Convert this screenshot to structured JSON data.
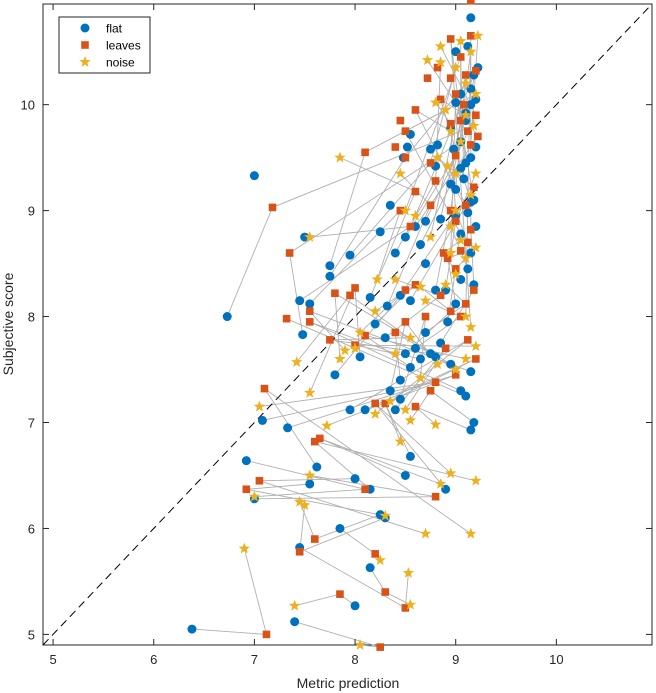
{
  "chart_data": {
    "type": "scatter",
    "xlabel": "Metric prediction",
    "ylabel": "Subjective score",
    "xlim": [
      4.9,
      10.95
    ],
    "ylim": [
      4.9,
      10.95
    ],
    "xticks": [
      "5",
      "6",
      "7",
      "8",
      "9",
      "10"
    ],
    "yticks": [
      "5",
      "6",
      "7",
      "8",
      "9",
      "10"
    ],
    "grid": false,
    "legend_position": "top-left",
    "reference_line": "identity (y = x), dashed",
    "connector_color": "#b0b0b0",
    "series": [
      {
        "name": "flat",
        "marker": "circle",
        "color": "#0072BD",
        "points": [
          [
            6.38,
            5.05
          ],
          [
            7.4,
            5.12
          ],
          [
            8.0,
            5.27
          ],
          [
            8.15,
            5.63
          ],
          [
            7.45,
            5.82
          ],
          [
            7.85,
            6.0
          ],
          [
            8.3,
            6.1
          ],
          [
            8.25,
            6.13
          ],
          [
            7.0,
            6.28
          ],
          [
            6.92,
            6.64
          ],
          [
            7.55,
            6.42
          ],
          [
            8.0,
            6.47
          ],
          [
            7.62,
            6.58
          ],
          [
            8.15,
            6.37
          ],
          [
            8.5,
            6.5
          ],
          [
            8.9,
            6.37
          ],
          [
            8.55,
            6.68
          ],
          [
            9.15,
            6.93
          ],
          [
            9.18,
            7.0
          ],
          [
            7.08,
            7.02
          ],
          [
            7.33,
            6.95
          ],
          [
            7.95,
            7.12
          ],
          [
            8.1,
            7.12
          ],
          [
            8.4,
            7.12
          ],
          [
            8.45,
            7.22
          ],
          [
            8.35,
            7.3
          ],
          [
            8.45,
            7.4
          ],
          [
            8.55,
            7.52
          ],
          [
            8.65,
            7.6
          ],
          [
            8.75,
            7.65
          ],
          [
            9.05,
            7.3
          ],
          [
            9.1,
            7.25
          ],
          [
            9.15,
            7.48
          ],
          [
            8.95,
            7.55
          ],
          [
            8.8,
            7.62
          ],
          [
            8.05,
            7.62
          ],
          [
            7.8,
            7.45
          ],
          [
            8.2,
            7.93
          ],
          [
            8.3,
            7.8
          ],
          [
            8.5,
            7.65
          ],
          [
            8.6,
            7.7
          ],
          [
            8.7,
            7.85
          ],
          [
            8.85,
            7.75
          ],
          [
            8.92,
            7.95
          ],
          [
            9.0,
            8.12
          ],
          [
            9.05,
            8.35
          ],
          [
            9.12,
            8.45
          ],
          [
            9.15,
            8.6
          ],
          [
            9.18,
            8.3
          ],
          [
            8.9,
            8.25
          ],
          [
            8.8,
            8.25
          ],
          [
            8.55,
            8.15
          ],
          [
            8.45,
            8.2
          ],
          [
            8.32,
            8.1
          ],
          [
            8.15,
            8.18
          ],
          [
            7.45,
            8.15
          ],
          [
            7.55,
            8.12
          ],
          [
            7.48,
            7.83
          ],
          [
            6.73,
            8.0
          ],
          [
            7.75,
            8.48
          ],
          [
            7.75,
            8.38
          ],
          [
            7.95,
            8.58
          ],
          [
            8.4,
            8.6
          ],
          [
            8.5,
            8.75
          ],
          [
            8.65,
            8.68
          ],
          [
            8.6,
            8.85
          ],
          [
            8.7,
            8.9
          ],
          [
            8.85,
            8.92
          ],
          [
            9.0,
            8.95
          ],
          [
            9.05,
            8.78
          ],
          [
            9.12,
            8.98
          ],
          [
            9.15,
            9.08
          ],
          [
            9.18,
            9.1
          ],
          [
            9.0,
            9.2
          ],
          [
            8.95,
            9.25
          ],
          [
            9.08,
            9.3
          ],
          [
            9.1,
            9.45
          ],
          [
            9.15,
            9.5
          ],
          [
            9.2,
            9.6
          ],
          [
            9.05,
            9.65
          ],
          [
            8.98,
            9.58
          ],
          [
            8.82,
            9.62
          ],
          [
            8.75,
            9.58
          ],
          [
            8.8,
            9.42
          ],
          [
            8.52,
            9.6
          ],
          [
            8.48,
            9.5
          ],
          [
            8.55,
            9.72
          ],
          [
            8.95,
            9.78
          ],
          [
            9.1,
            9.92
          ],
          [
            9.15,
            10.0
          ],
          [
            9.2,
            10.05
          ],
          [
            9.0,
            10.02
          ],
          [
            9.05,
            10.1
          ],
          [
            9.15,
            10.15
          ],
          [
            9.18,
            10.28
          ],
          [
            9.22,
            10.35
          ],
          [
            9.0,
            10.5
          ],
          [
            9.12,
            10.55
          ],
          [
            9.15,
            10.82
          ],
          [
            8.35,
            9.05
          ],
          [
            8.25,
            8.8
          ],
          [
            7.5,
            8.75
          ],
          [
            7.0,
            9.33
          ],
          [
            9.1,
            9.85
          ],
          [
            9.05,
            9.4
          ],
          [
            8.7,
            8.5
          ],
          [
            9.2,
            8.85
          ]
        ]
      },
      {
        "name": "leaves",
        "marker": "square",
        "color": "#D95319",
        "points": [
          [
            7.12,
            5.0
          ],
          [
            8.25,
            4.88
          ],
          [
            7.85,
            5.38
          ],
          [
            8.3,
            5.4
          ],
          [
            8.5,
            5.25
          ],
          [
            8.2,
            5.76
          ],
          [
            7.45,
            5.78
          ],
          [
            7.6,
            5.9
          ],
          [
            8.8,
            6.3
          ],
          [
            8.1,
            6.37
          ],
          [
            6.92,
            6.37
          ],
          [
            7.05,
            6.45
          ],
          [
            7.1,
            7.32
          ],
          [
            7.6,
            6.82
          ],
          [
            7.65,
            6.85
          ],
          [
            8.2,
            7.18
          ],
          [
            8.3,
            7.18
          ],
          [
            8.6,
            7.15
          ],
          [
            8.75,
            7.3
          ],
          [
            8.8,
            7.38
          ],
          [
            9.0,
            7.45
          ],
          [
            9.12,
            7.78
          ],
          [
            9.2,
            7.6
          ],
          [
            8.9,
            7.7
          ],
          [
            8.7,
            8.0
          ],
          [
            8.5,
            7.95
          ],
          [
            8.4,
            7.85
          ],
          [
            8.1,
            7.82
          ],
          [
            8.0,
            7.73
          ],
          [
            7.75,
            7.78
          ],
          [
            7.55,
            7.95
          ],
          [
            7.32,
            7.98
          ],
          [
            7.55,
            8.05
          ],
          [
            7.8,
            8.22
          ],
          [
            7.95,
            8.2
          ],
          [
            8.0,
            8.27
          ],
          [
            8.5,
            8.25
          ],
          [
            8.6,
            8.3
          ],
          [
            8.85,
            8.2
          ],
          [
            8.95,
            8.05
          ],
          [
            9.05,
            8.0
          ],
          [
            9.1,
            8.12
          ],
          [
            9.18,
            8.25
          ],
          [
            9.0,
            8.45
          ],
          [
            8.92,
            8.55
          ],
          [
            8.88,
            8.6
          ],
          [
            9.05,
            8.62
          ],
          [
            9.12,
            8.7
          ],
          [
            9.15,
            8.82
          ],
          [
            9.0,
            8.9
          ],
          [
            8.95,
            9.0
          ],
          [
            9.1,
            9.05
          ],
          [
            9.18,
            9.22
          ],
          [
            8.75,
            9.05
          ],
          [
            8.6,
            9.18
          ],
          [
            8.55,
            8.85
          ],
          [
            8.45,
            9.0
          ],
          [
            7.35,
            8.6
          ],
          [
            7.18,
            9.03
          ],
          [
            8.1,
            9.55
          ],
          [
            8.5,
            9.5
          ],
          [
            8.75,
            9.45
          ],
          [
            8.8,
            9.28
          ],
          [
            9.0,
            9.52
          ],
          [
            9.15,
            9.62
          ],
          [
            9.22,
            9.7
          ],
          [
            9.2,
            9.9
          ],
          [
            9.05,
            9.85
          ],
          [
            8.95,
            9.82
          ],
          [
            8.5,
            9.75
          ],
          [
            8.6,
            9.95
          ],
          [
            8.85,
            10.05
          ],
          [
            9.0,
            10.1
          ],
          [
            9.1,
            10.28
          ],
          [
            9.2,
            10.32
          ],
          [
            9.05,
            10.45
          ],
          [
            8.95,
            10.62
          ],
          [
            9.15,
            10.65
          ],
          [
            9.15,
            10.98
          ],
          [
            8.72,
            10.25
          ],
          [
            8.82,
            10.35
          ],
          [
            8.95,
            10.25
          ],
          [
            9.08,
            10.0
          ],
          [
            9.12,
            9.75
          ],
          [
            8.4,
            9.6
          ],
          [
            8.45,
            9.85
          ]
        ]
      },
      {
        "name": "noise",
        "marker": "star",
        "color": "#EDB120",
        "points": [
          [
            6.9,
            5.81
          ],
          [
            8.05,
            4.9
          ],
          [
            7.4,
            5.27
          ],
          [
            8.55,
            5.28
          ],
          [
            8.53,
            5.58
          ],
          [
            8.25,
            5.7
          ],
          [
            7.5,
            6.22
          ],
          [
            7.45,
            6.25
          ],
          [
            7.55,
            6.5
          ],
          [
            7.0,
            6.3
          ],
          [
            8.3,
            6.12
          ],
          [
            8.7,
            5.95
          ],
          [
            9.15,
            5.95
          ],
          [
            9.2,
            6.45
          ],
          [
            8.85,
            6.42
          ],
          [
            8.95,
            6.52
          ],
          [
            8.45,
            6.82
          ],
          [
            8.8,
            6.98
          ],
          [
            8.55,
            7.02
          ],
          [
            7.05,
            7.15
          ],
          [
            7.72,
            6.97
          ],
          [
            8.2,
            7.08
          ],
          [
            8.35,
            7.2
          ],
          [
            8.5,
            7.12
          ],
          [
            8.65,
            7.42
          ],
          [
            8.82,
            7.55
          ],
          [
            9.0,
            7.5
          ],
          [
            9.1,
            7.6
          ],
          [
            9.2,
            7.72
          ],
          [
            8.55,
            7.8
          ],
          [
            8.4,
            7.65
          ],
          [
            8.0,
            7.7
          ],
          [
            7.9,
            7.68
          ],
          [
            7.85,
            7.6
          ],
          [
            7.42,
            7.57
          ],
          [
            7.55,
            7.28
          ],
          [
            8.05,
            7.85
          ],
          [
            8.2,
            8.05
          ],
          [
            8.4,
            8.35
          ],
          [
            8.65,
            8.28
          ],
          [
            8.7,
            8.15
          ],
          [
            8.9,
            8.3
          ],
          [
            9.0,
            8.4
          ],
          [
            9.1,
            8.55
          ],
          [
            9.2,
            8.65
          ],
          [
            9.05,
            8.72
          ],
          [
            8.95,
            8.85
          ],
          [
            9.0,
            9.0
          ],
          [
            9.15,
            9.15
          ],
          [
            9.2,
            9.35
          ],
          [
            9.0,
            9.35
          ],
          [
            8.92,
            9.42
          ],
          [
            8.82,
            9.5
          ],
          [
            8.45,
            9.35
          ],
          [
            7.85,
            9.5
          ],
          [
            7.55,
            8.75
          ],
          [
            8.22,
            8.35
          ],
          [
            9.05,
            9.65
          ],
          [
            9.18,
            9.8
          ],
          [
            9.2,
            10.1
          ],
          [
            9.1,
            10.2
          ],
          [
            9.0,
            10.35
          ],
          [
            8.85,
            10.4
          ],
          [
            9.15,
            10.5
          ],
          [
            9.22,
            10.65
          ],
          [
            8.72,
            10.42
          ],
          [
            8.85,
            10.55
          ],
          [
            9.05,
            10.6
          ],
          [
            8.8,
            10.02
          ],
          [
            8.9,
            9.95
          ],
          [
            8.95,
            9.75
          ],
          [
            9.1,
            9.9
          ],
          [
            8.95,
            8.6
          ],
          [
            8.75,
            8.75
          ],
          [
            8.6,
            8.95
          ],
          [
            8.5,
            9.0
          ],
          [
            9.15,
            7.9
          ],
          [
            9.1,
            8.0
          ]
        ]
      }
    ]
  }
}
